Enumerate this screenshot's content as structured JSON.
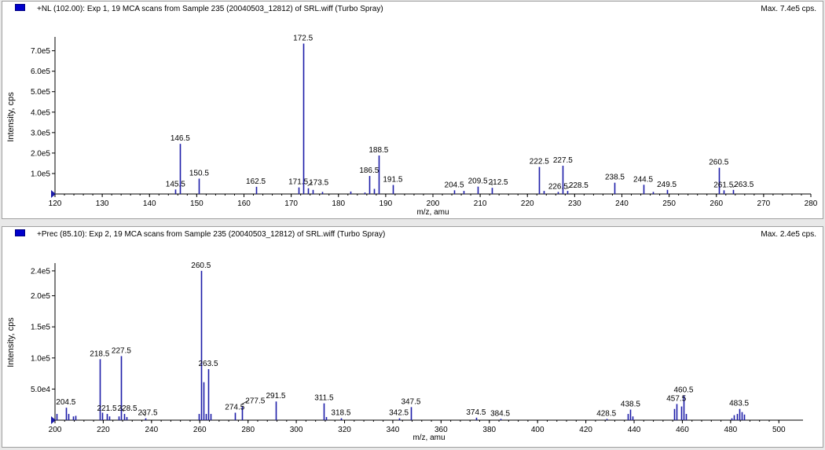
{
  "colors": {
    "series": "#1c1ca8",
    "axis": "#000000",
    "marker": "#0000cc"
  },
  "chart_data": [
    {
      "type": "bar",
      "title": "+NL (102.00): Exp 1, 19 MCA scans from Sample 235 (20040503_12812) of SRL.wiff (Turbo Spray)",
      "max_label": "Max. 7.4e5 cps.",
      "xlabel": "m/z, amu",
      "ylabel": "Intensity, cps",
      "xlim": [
        120,
        280
      ],
      "ylim": [
        0,
        760000
      ],
      "xticks": [
        120,
        130,
        140,
        150,
        160,
        170,
        180,
        190,
        200,
        210,
        220,
        230,
        240,
        250,
        260,
        270,
        280
      ],
      "yticks": [
        {
          "value": 100000,
          "label": "1.0e5"
        },
        {
          "value": 200000,
          "label": "2.0e5"
        },
        {
          "value": 300000,
          "label": "3.0e5"
        },
        {
          "value": 400000,
          "label": "4.0e5"
        },
        {
          "value": 500000,
          "label": "5.0e5"
        },
        {
          "value": 600000,
          "label": "6.0e5"
        },
        {
          "value": 700000,
          "label": "7.0e5"
        }
      ],
      "peaks": [
        {
          "x": 145.5,
          "y": 22000
        },
        {
          "x": 146.5,
          "y": 245000
        },
        {
          "x": 150.5,
          "y": 75000
        },
        {
          "x": 162.5,
          "y": 35000
        },
        {
          "x": 171.5,
          "y": 32000
        },
        {
          "x": 172.5,
          "y": 735000
        },
        {
          "x": 173.5,
          "y": 28000
        },
        {
          "x": 174.5,
          "y": 20000
        },
        {
          "x": 176.5,
          "y": 10000
        },
        {
          "x": 182.5,
          "y": 12000
        },
        {
          "x": 185.5,
          "y": 7000
        },
        {
          "x": 186.5,
          "y": 88000
        },
        {
          "x": 187.5,
          "y": 25000
        },
        {
          "x": 188.5,
          "y": 188000
        },
        {
          "x": 191.5,
          "y": 44000
        },
        {
          "x": 204.5,
          "y": 18000
        },
        {
          "x": 206.5,
          "y": 15000
        },
        {
          "x": 209.5,
          "y": 36000
        },
        {
          "x": 212.5,
          "y": 30000
        },
        {
          "x": 222.5,
          "y": 132000
        },
        {
          "x": 223.5,
          "y": 15000
        },
        {
          "x": 226.5,
          "y": 10000
        },
        {
          "x": 227.5,
          "y": 138000
        },
        {
          "x": 228.5,
          "y": 15000
        },
        {
          "x": 238.5,
          "y": 55000
        },
        {
          "x": 244.5,
          "y": 45000
        },
        {
          "x": 246.5,
          "y": 10000
        },
        {
          "x": 249.5,
          "y": 20000
        },
        {
          "x": 260.5,
          "y": 128000
        },
        {
          "x": 261.5,
          "y": 18000
        },
        {
          "x": 263.5,
          "y": 20000
        }
      ],
      "annotations": [
        {
          "x": 145.5,
          "label": "145.5"
        },
        {
          "x": 146.5,
          "label": "146.5"
        },
        {
          "x": 150.5,
          "label": "150.5"
        },
        {
          "x": 162.5,
          "label": "162.5"
        },
        {
          "x": 171.5,
          "label": "171.5"
        },
        {
          "x": 172.5,
          "label": "172.5"
        },
        {
          "x": 173.5,
          "label": "173.5"
        },
        {
          "x": 186.5,
          "label": "186.5"
        },
        {
          "x": 188.5,
          "label": "188.5"
        },
        {
          "x": 191.5,
          "label": "191.5"
        },
        {
          "x": 204.5,
          "label": "204.5"
        },
        {
          "x": 209.5,
          "label": "209.5"
        },
        {
          "x": 212.5,
          "label": "212.5"
        },
        {
          "x": 222.5,
          "label": "222.5"
        },
        {
          "x": 226.5,
          "label": "226.5"
        },
        {
          "x": 227.5,
          "label": "227.5"
        },
        {
          "x": 228.5,
          "label": "228.5"
        },
        {
          "x": 238.5,
          "label": "238.5"
        },
        {
          "x": 244.5,
          "label": "244.5"
        },
        {
          "x": 249.5,
          "label": "249.5"
        },
        {
          "x": 260.5,
          "label": "260.5"
        },
        {
          "x": 261.5,
          "label": "261.5"
        },
        {
          "x": 263.5,
          "label": "263.5"
        }
      ]
    },
    {
      "type": "bar",
      "title": "+Prec (85.10): Exp 2, 19 MCA scans from Sample 235 (20040503_12812) of SRL.wiff (Turbo Spray)",
      "max_label": "Max. 2.4e5 cps.",
      "xlabel": "m/z, amu",
      "ylabel": "Intensity, cps",
      "xlim": [
        200,
        510
      ],
      "ylim": [
        0,
        250000
      ],
      "xticks": [
        200,
        220,
        240,
        260,
        280,
        300,
        320,
        340,
        360,
        380,
        400,
        420,
        440,
        460,
        480,
        500
      ],
      "yticks": [
        {
          "value": 50000,
          "label": "5.0e4"
        },
        {
          "value": 100000,
          "label": "1.0e5"
        },
        {
          "value": 150000,
          "label": "1.5e5"
        },
        {
          "value": 200000,
          "label": "2.0e5"
        },
        {
          "value": 240000,
          "label": "2.4e5"
        }
      ],
      "peaks": [
        {
          "x": 200.5,
          "y": 10000
        },
        {
          "x": 204.5,
          "y": 20000
        },
        {
          "x": 205.5,
          "y": 10000
        },
        {
          "x": 207.5,
          "y": 6000
        },
        {
          "x": 208.5,
          "y": 7000
        },
        {
          "x": 218.5,
          "y": 98000
        },
        {
          "x": 219.5,
          "y": 12000
        },
        {
          "x": 221.5,
          "y": 10000
        },
        {
          "x": 222.5,
          "y": 6000
        },
        {
          "x": 226.5,
          "y": 6000
        },
        {
          "x": 227.5,
          "y": 103000
        },
        {
          "x": 228.5,
          "y": 10000
        },
        {
          "x": 229.5,
          "y": 5000
        },
        {
          "x": 237.5,
          "y": 3000
        },
        {
          "x": 259.5,
          "y": 10000
        },
        {
          "x": 260.5,
          "y": 240000
        },
        {
          "x": 261.5,
          "y": 61000
        },
        {
          "x": 262.5,
          "y": 10000
        },
        {
          "x": 263.5,
          "y": 82000
        },
        {
          "x": 264.5,
          "y": 10000
        },
        {
          "x": 274.5,
          "y": 12000
        },
        {
          "x": 277.5,
          "y": 22000
        },
        {
          "x": 291.5,
          "y": 30000
        },
        {
          "x": 311.5,
          "y": 27000
        },
        {
          "x": 312.5,
          "y": 5000
        },
        {
          "x": 318.5,
          "y": 3000
        },
        {
          "x": 342.5,
          "y": 3000
        },
        {
          "x": 347.5,
          "y": 21000
        },
        {
          "x": 374.5,
          "y": 4000
        },
        {
          "x": 384.5,
          "y": 2000
        },
        {
          "x": 428.5,
          "y": 2000
        },
        {
          "x": 437.5,
          "y": 10000
        },
        {
          "x": 438.5,
          "y": 17000
        },
        {
          "x": 439.5,
          "y": 6000
        },
        {
          "x": 456.5,
          "y": 18000
        },
        {
          "x": 457.5,
          "y": 26000
        },
        {
          "x": 459.5,
          "y": 22000
        },
        {
          "x": 460.5,
          "y": 40000
        },
        {
          "x": 461.5,
          "y": 10000
        },
        {
          "x": 480.5,
          "y": 3000
        },
        {
          "x": 481.5,
          "y": 8000
        },
        {
          "x": 482.5,
          "y": 10000
        },
        {
          "x": 483.5,
          "y": 18000
        },
        {
          "x": 484.5,
          "y": 13000
        },
        {
          "x": 485.5,
          "y": 9000
        }
      ],
      "annotations": [
        {
          "x": 204.5,
          "label": "204.5"
        },
        {
          "x": 218.5,
          "label": "218.5"
        },
        {
          "x": 221.5,
          "label": "221.5"
        },
        {
          "x": 227.5,
          "label": "227.5"
        },
        {
          "x": 228.5,
          "label": "228.5"
        },
        {
          "x": 237.5,
          "label": "237.5"
        },
        {
          "x": 260.5,
          "label": "260.5"
        },
        {
          "x": 263.5,
          "label": "263.5"
        },
        {
          "x": 274.5,
          "label": "274.5"
        },
        {
          "x": 277.5,
          "label": "277.5"
        },
        {
          "x": 291.5,
          "label": "291.5"
        },
        {
          "x": 311.5,
          "label": "311.5"
        },
        {
          "x": 318.5,
          "label": "318.5"
        },
        {
          "x": 342.5,
          "label": "342.5"
        },
        {
          "x": 347.5,
          "label": "347.5"
        },
        {
          "x": 374.5,
          "label": "374.5"
        },
        {
          "x": 384.5,
          "label": "384.5"
        },
        {
          "x": 428.5,
          "label": "428.5"
        },
        {
          "x": 438.5,
          "label": "438.5"
        },
        {
          "x": 457.5,
          "label": "457.5"
        },
        {
          "x": 460.5,
          "label": "460.5"
        },
        {
          "x": 483.5,
          "label": "483.5"
        }
      ]
    }
  ]
}
